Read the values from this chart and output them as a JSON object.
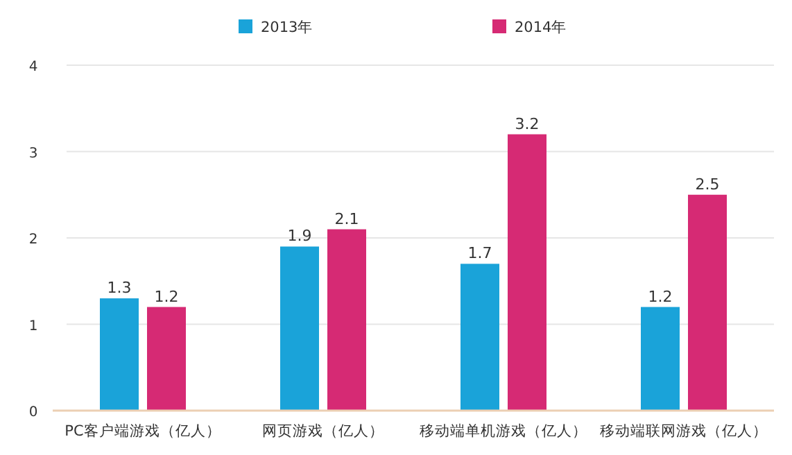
{
  "chart_data": {
    "type": "bar",
    "categories": [
      "PC客户端游戏（亿人）",
      "网页游戏（亿人）",
      "移动端单机游戏（亿人）",
      "移动端联网游戏（亿人）"
    ],
    "series": [
      {
        "name": "2013年",
        "color": "#1aa3d9",
        "values": [
          1.3,
          1.9,
          1.7,
          1.2
        ]
      },
      {
        "name": "2014年",
        "color": "#d62a74",
        "values": [
          1.2,
          2.1,
          3.2,
          2.5
        ]
      }
    ],
    "ylim": [
      0,
      4
    ],
    "yticks": [
      0,
      1,
      2,
      3,
      4
    ],
    "grid": "y",
    "legend": "top",
    "data_labels": true
  }
}
